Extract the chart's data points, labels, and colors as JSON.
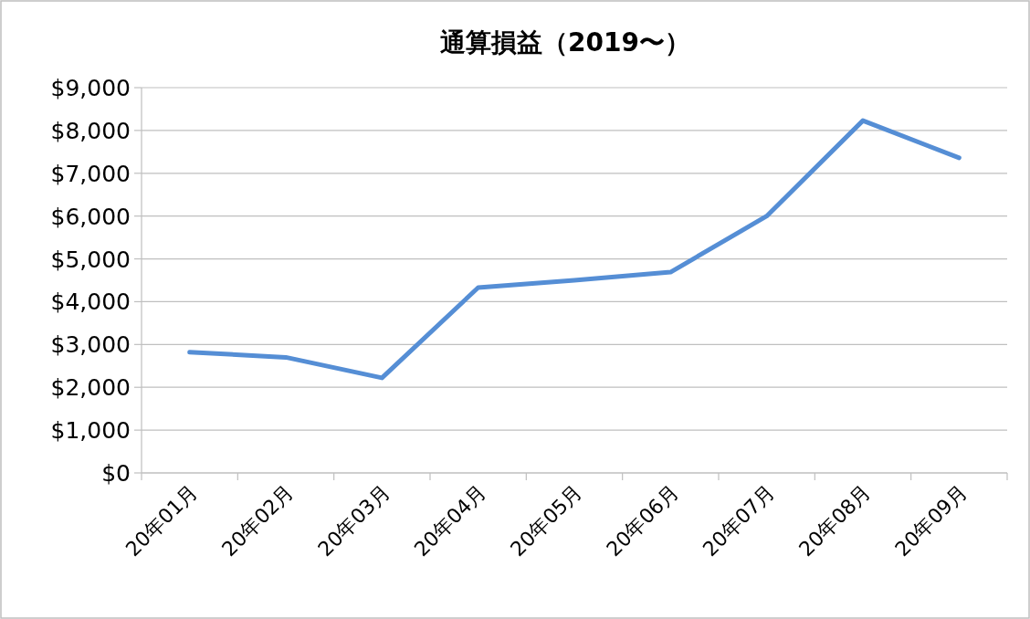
{
  "chart_data": {
    "type": "line",
    "title": "通算損益（2019〜）",
    "categories": [
      "20年01月",
      "20年02月",
      "20年03月",
      "20年04月",
      "20年05月",
      "20年06月",
      "20年07月",
      "20年08月",
      "20年09月"
    ],
    "series": [
      {
        "color": "#558ed5",
        "values": [
          2820,
          2700,
          2220,
          4330,
          4500,
          4690,
          6000,
          8230,
          7360
        ]
      }
    ],
    "ylim": [
      0,
      9000
    ],
    "yticks": [
      {
        "value": 0,
        "label": "$0"
      },
      {
        "value": 1000,
        "label": "$1,000"
      },
      {
        "value": 2000,
        "label": "$2,000"
      },
      {
        "value": 3000,
        "label": "$3,000"
      },
      {
        "value": 4000,
        "label": "$4,000"
      },
      {
        "value": 5000,
        "label": "$5,000"
      },
      {
        "value": 6000,
        "label": "$6,000"
      },
      {
        "value": 7000,
        "label": "$7,000"
      },
      {
        "value": 8000,
        "label": "$8,000"
      },
      {
        "value": 9000,
        "label": "$9,000"
      }
    ],
    "grid": "y",
    "marker": "none",
    "line_style": "solid"
  }
}
